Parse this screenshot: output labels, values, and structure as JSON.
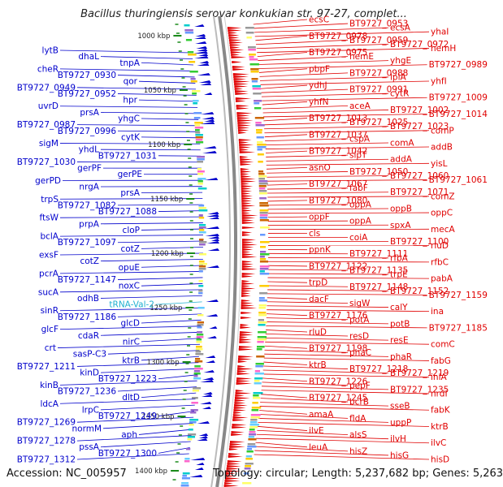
{
  "title": "Bacillus thuringiensis serovar konkukian str. 97-27, complet...",
  "footer": {
    "accession": "Accession: NC_005957",
    "summary": "Topology: circular; Length: 5,237,682 bp; Genes: 5,263"
  },
  "colors": {
    "forward": "#e00000",
    "reverse": "#0000cc",
    "rna": "#20b0d0",
    "backbone": "#888888",
    "ticks": "#1a8a1a"
  },
  "kbp_ticks": [
    "1000 kbp",
    "1050 kbp",
    "1100 kbp",
    "1150 kbp",
    "1200 kbp",
    "1250 kbp",
    "1300 kbp",
    "1350 kbp",
    "1400 kbp"
  ],
  "left_labels": [
    "lytB",
    "dhaL",
    "tnpA",
    "cheR",
    "BT9727_0930",
    "qor",
    "BT9727_0949",
    "BT9727_0952",
    "hpr",
    "uvrD",
    "prsA",
    "yhgC",
    "BT9727_0987",
    "BT9727_0996",
    "cytK",
    "sigM",
    "yhdL",
    "BT9727_1031",
    "BT9727_1030",
    "gerPF",
    "gerPE",
    "gerPD",
    "nrgA",
    "prsA",
    "trpS",
    "BT9727_1082",
    "BT9727_1088",
    "ftsW",
    "prpA",
    "cloP",
    "bclA",
    "BT9727_1097",
    "cotZ",
    "exsF",
    "cotZ",
    "opuE",
    "pcrA",
    "BT9727_1147",
    "noxC",
    "sucA",
    "odhB",
    "tRNA-Val-2",
    "sinR",
    "BT9727_1186",
    "glcD",
    "glcF",
    "cdaR",
    "nirC",
    "crt",
    "sasP-C3",
    "ktrB",
    "BT9727_1211",
    "kinD",
    "BT9727_1223",
    "kinB",
    "BT9727_1236",
    "dltD",
    "ldcA",
    "lrpC",
    "BT9727_1249",
    "BT9727_1269",
    "normM",
    "aph",
    "BT9727_1278",
    "pssA",
    "BT9727_1300",
    "BT9727_1312"
  ],
  "right_labels": [
    "ecsC",
    "BT9727_0953",
    "ecsA",
    "yhaI",
    "BT9727_0978",
    "BT9727_0959",
    "BT9727_0972",
    "hemH",
    "BT9727_0975",
    "hemE",
    "yhgE",
    "BT9727_0989",
    "pbpF",
    "BT9727_0988",
    "lplA",
    "yhfI",
    "ydhJ",
    "BT9727_0991",
    "cytR",
    "BT9727_1009",
    "yhfN",
    "aceA",
    "BT9727_1002",
    "BT9727_1014",
    "BT9727_1013",
    "BT9727_1025",
    "BT9727_1023",
    "comP",
    "BT9727_1037",
    "cspA",
    "comA",
    "addB",
    "BT9727_1042",
    "slpT",
    "addA",
    "yisL",
    "asnO",
    "BT9727_1050",
    "BT9727_1060",
    "BT9727_1061",
    "BT9727_1067",
    "fabF",
    "BT9727_1071",
    "comZ",
    "BT9727_1080",
    "oppA",
    "oppB",
    "oppC",
    "oppF",
    "oppA",
    "spxA",
    "mecA",
    "cls",
    "coiA",
    "BT9727_1100",
    "rluD",
    "ppnK",
    "BT9727_1111",
    "rfbA",
    "rfbC",
    "BT9727_1122",
    "BT9727_1135",
    "trpE",
    "pabA",
    "trpD",
    "BT9727_1148",
    "BT9727_1152",
    "BT9727_1159",
    "dacF",
    "sigW",
    "calY",
    "ina",
    "BT9727_1176",
    "potA",
    "potB",
    "BT9727_1185",
    "rluD",
    "resD",
    "resE",
    "comC",
    "BT9727_1198",
    "phaC",
    "phaR",
    "fabG",
    "ktrB",
    "BT9727_1218",
    "BT9727_1219",
    "inlA",
    "BT9727_1226",
    "pepF",
    "BT9727_1235",
    "nrdI",
    "BT9727_1245",
    "bcrB",
    "sseB",
    "fabK",
    "amaA",
    "fldA",
    "uppP",
    "ktrB",
    "ilvE",
    "alsS",
    "ilvH",
    "ilvC",
    "leuA",
    "hisZ",
    "hisG",
    "hisD"
  ]
}
